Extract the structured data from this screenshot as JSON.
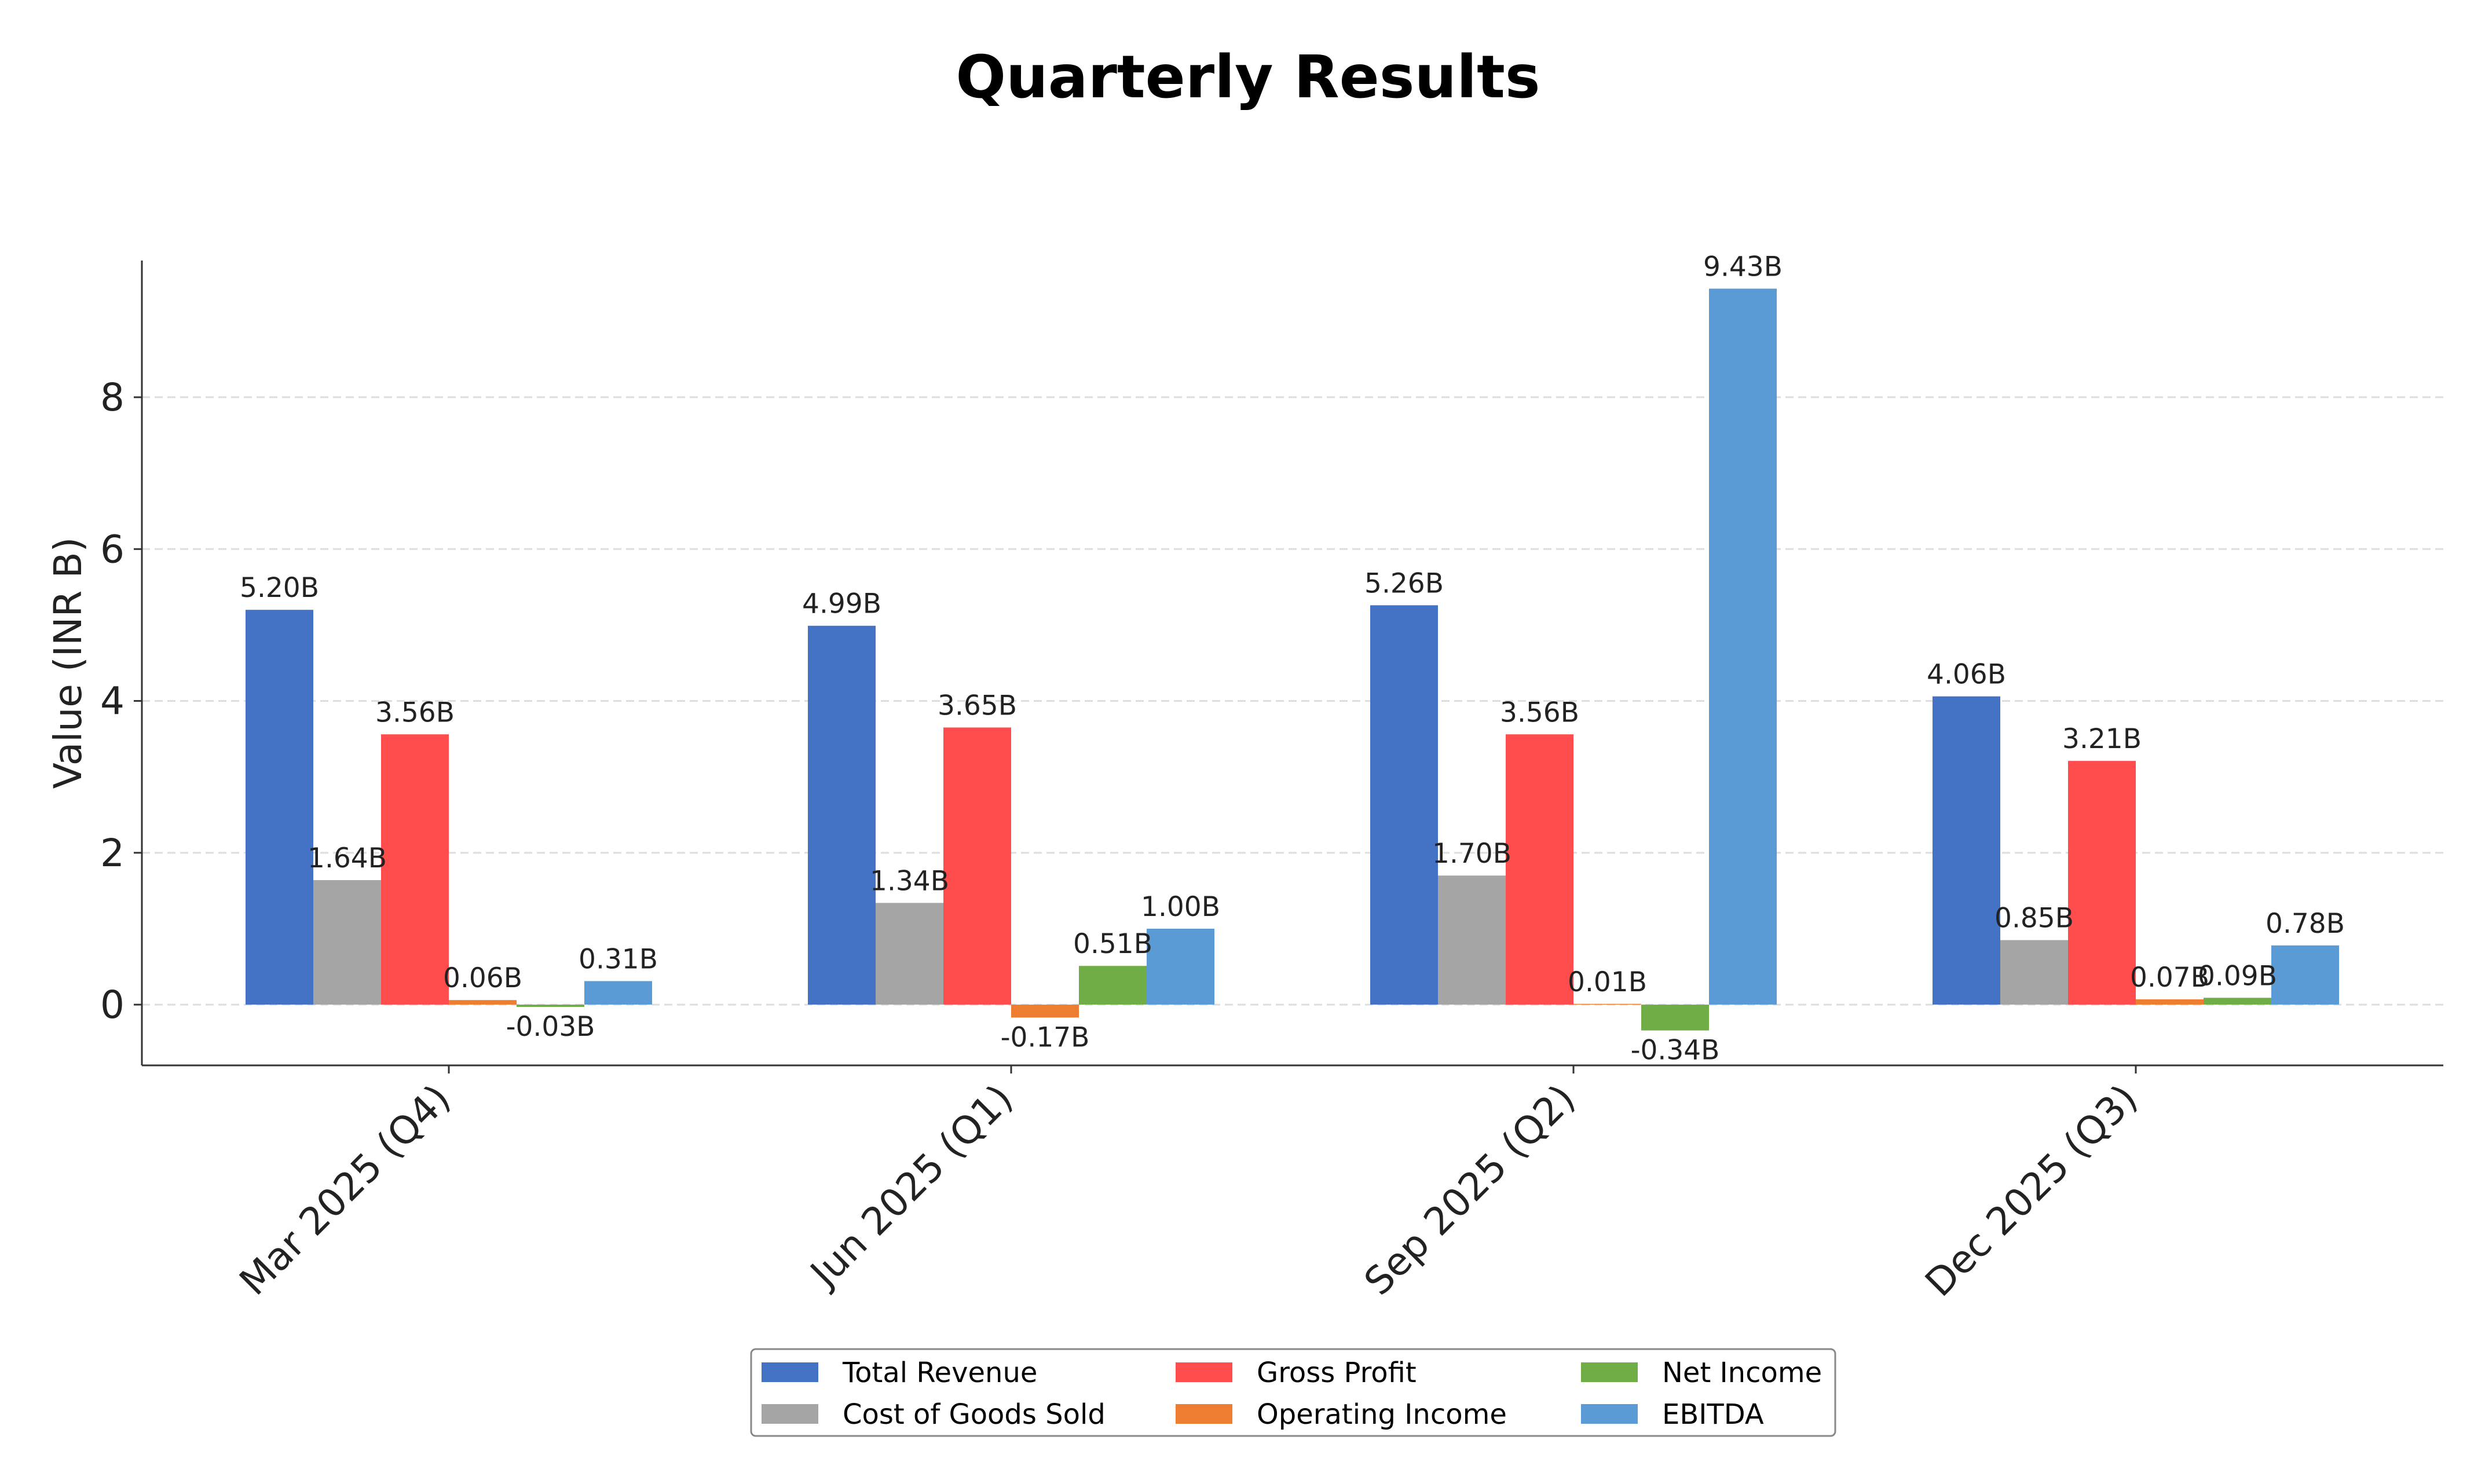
{
  "chart_data": {
    "type": "bar",
    "title": "Quarterly Results",
    "xlabel": "",
    "ylabel": "Value (INR B)",
    "categories": [
      "Mar 2025 (Q4)",
      "Jun 2025 (Q1)",
      "Sep 2025 (Q2)",
      "Dec 2025 (Q3)"
    ],
    "series": [
      {
        "name": "Total Revenue",
        "color": "#4472C4",
        "values": [
          5.2,
          4.99,
          5.26,
          4.06
        ],
        "labels": [
          "5.20B",
          "4.99B",
          "5.26B",
          "4.06B"
        ]
      },
      {
        "name": "Cost of Goods Sold",
        "color": "#A5A5A5",
        "values": [
          1.64,
          1.34,
          1.7,
          0.85
        ],
        "labels": [
          "1.64B",
          "1.34B",
          "1.70B",
          "0.85B"
        ]
      },
      {
        "name": "Gross Profit",
        "color": "#FF4C4C",
        "values": [
          3.56,
          3.65,
          3.56,
          3.21
        ],
        "labels": [
          "3.56B",
          "3.65B",
          "3.56B",
          "3.21B"
        ]
      },
      {
        "name": "Operating Income",
        "color": "#ED7D31",
        "values": [
          0.06,
          -0.17,
          0.01,
          0.07
        ],
        "labels": [
          "0.06B",
          "-0.17B",
          "0.01B",
          "0.07B"
        ]
      },
      {
        "name": "Net Income",
        "color": "#70AD47",
        "values": [
          -0.03,
          0.51,
          -0.34,
          0.09
        ],
        "labels": [
          "-0.03B",
          "0.51B",
          "-0.34B",
          "0.09B"
        ]
      },
      {
        "name": "EBITDA",
        "color": "#5B9BD5",
        "values": [
          0.31,
          1.0,
          9.43,
          0.78
        ],
        "labels": [
          "0.31B",
          "1.00B",
          "9.43B",
          "0.78B"
        ]
      }
    ],
    "ylim": [
      -0.8,
      9.8
    ],
    "yticks": [
      0,
      2,
      4,
      6,
      8
    ],
    "grid": true,
    "legend_position": "bottom-center",
    "legend_columns": 3
  }
}
